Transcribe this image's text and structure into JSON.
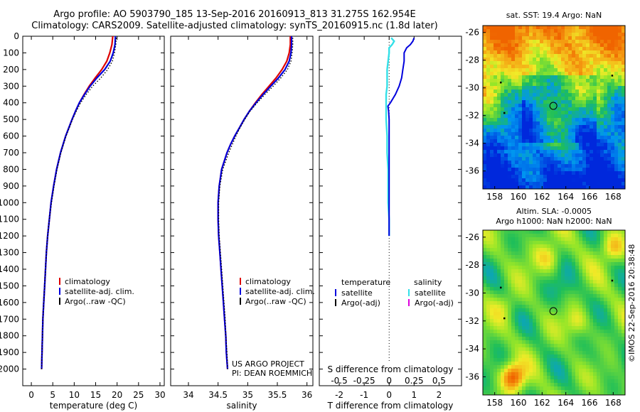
{
  "header": {
    "line1": "Argo profile: AO 5903790_185 13-Sep-2016 20160913_813 31.275S 162.954E",
    "line2": "Climatology: CARS2009. Satellite-adjusted climatology: synTS_20160915.nc (1.8d later)"
  },
  "credit": {
    "project": "US ARGO PROJECT",
    "pi": "PI: DEAN ROEMMICH",
    "imos": "©IMOS 22-Sep-2016 20:38:48"
  },
  "colors": {
    "climatology": "#dd0000",
    "satellite": "#0000dd",
    "argo": "#000000",
    "salinity_satellite": "#33e0e8",
    "salinity_argo": "#dd00dd"
  },
  "chart_data": [
    {
      "type": "line",
      "xlabel": "temperature (deg C)",
      "ylabel": "",
      "xlim": [
        -2,
        31
      ],
      "ylim": [
        2100,
        0
      ],
      "xticks": [
        "0",
        "5",
        "10",
        "15",
        "20",
        "25",
        "30"
      ],
      "yticks": [
        "0",
        "100",
        "200",
        "300",
        "400",
        "500",
        "600",
        "700",
        "800",
        "900",
        "1000",
        "1100",
        "1200",
        "1300",
        "1400",
        "1500",
        "1600",
        "1700",
        "1800",
        "1900",
        "2000"
      ],
      "legend": {
        "position": "lower-middle",
        "entries": [
          "climatology",
          "satellite-adj. clim.",
          "Argo(..raw -QC)"
        ]
      },
      "series": [
        {
          "name": "climatology",
          "depth": [
            0,
            50,
            100,
            150,
            200,
            250,
            300,
            350,
            400,
            450,
            500,
            600,
            700,
            800,
            900,
            1000,
            1100,
            1200,
            1300,
            1400,
            1500,
            1600,
            1700,
            1800,
            1900,
            2000
          ],
          "values": [
            19.0,
            18.8,
            18.3,
            17.6,
            16.4,
            14.9,
            13.5,
            12.3,
            11.2,
            10.3,
            9.5,
            8.0,
            6.8,
            5.9,
            5.2,
            4.6,
            4.2,
            3.8,
            3.5,
            3.3,
            3.1,
            2.9,
            2.7,
            2.6,
            2.5,
            2.4
          ]
        },
        {
          "name": "satellite-adj. clim.",
          "depth": [
            0,
            50,
            100,
            150,
            200,
            250,
            300,
            350,
            400,
            450,
            500,
            600,
            700,
            800,
            900,
            1000,
            1100,
            1200,
            1300,
            1400,
            1500,
            1600,
            1700,
            1800,
            1900,
            2000
          ],
          "values": [
            19.6,
            19.5,
            19.1,
            18.4,
            17.1,
            15.3,
            13.7,
            12.4,
            11.2,
            10.3,
            9.5,
            8.0,
            6.8,
            5.9,
            5.2,
            4.6,
            4.2,
            3.8,
            3.5,
            3.3,
            3.1,
            2.9,
            2.7,
            2.6,
            2.5,
            2.4
          ]
        },
        {
          "name": "Argo(..raw -QC)",
          "depth": [
            10,
            50,
            100,
            150,
            200,
            250,
            300,
            350,
            400,
            450,
            500,
            600,
            700,
            800,
            900,
            1000,
            1100,
            1200,
            1300,
            1400,
            1500,
            1600,
            1700,
            1800,
            1900,
            2000
          ],
          "values": [
            19.8,
            19.7,
            19.4,
            18.9,
            17.8,
            16.2,
            14.3,
            12.8,
            11.5,
            10.5,
            9.6,
            8.1,
            6.9,
            6.0,
            5.3,
            4.7,
            4.2,
            3.8,
            3.5,
            3.3,
            3.1,
            2.9,
            2.7,
            2.6,
            2.5,
            2.4
          ]
        }
      ]
    },
    {
      "type": "line",
      "xlabel": "salinity",
      "ylabel": "",
      "xlim": [
        33.7,
        36.1
      ],
      "ylim": [
        2100,
        0
      ],
      "xticks": [
        "34",
        "34.5",
        "35",
        "35.5",
        "36"
      ],
      "legend": {
        "position": "lower-right",
        "entries": [
          "climatology",
          "satellite-adj. clim.",
          "Argo(..raw -QC)"
        ]
      },
      "series": [
        {
          "name": "climatology",
          "depth": [
            0,
            50,
            100,
            150,
            200,
            250,
            300,
            350,
            400,
            450,
            500,
            550,
            600,
            650,
            700,
            800,
            900,
            1000,
            1100,
            1200,
            1300,
            1400,
            1500,
            1600,
            1700,
            1800,
            1900,
            2000
          ],
          "values": [
            35.72,
            35.72,
            35.7,
            35.66,
            35.58,
            35.48,
            35.36,
            35.24,
            35.13,
            35.03,
            34.94,
            34.86,
            34.78,
            34.71,
            34.65,
            34.56,
            34.52,
            34.5,
            34.5,
            34.51,
            34.53,
            34.55,
            34.57,
            34.59,
            34.61,
            34.63,
            34.64,
            34.66
          ]
        },
        {
          "name": "satellite-adj. clim.",
          "depth": [
            0,
            50,
            100,
            150,
            200,
            250,
            300,
            350,
            400,
            450,
            500,
            550,
            600,
            650,
            700,
            800,
            900,
            1000,
            1100,
            1200,
            1300,
            1400,
            1500,
            1600,
            1700,
            1800,
            1900,
            2000
          ],
          "values": [
            35.74,
            35.74,
            35.73,
            35.7,
            35.63,
            35.52,
            35.39,
            35.26,
            35.14,
            35.03,
            34.94,
            34.86,
            34.78,
            34.71,
            34.65,
            34.56,
            34.52,
            34.5,
            34.5,
            34.51,
            34.53,
            34.55,
            34.57,
            34.59,
            34.61,
            34.63,
            34.64,
            34.66
          ]
        },
        {
          "name": "Argo(..raw -QC)",
          "depth": [
            10,
            50,
            100,
            150,
            200,
            250,
            300,
            350,
            400,
            450,
            500,
            550,
            600,
            650,
            700,
            800,
            900,
            1000,
            1100,
            1200,
            1300,
            1400,
            1500,
            1600,
            1700,
            1800,
            1900,
            2000
          ],
          "values": [
            35.76,
            35.76,
            35.75,
            35.73,
            35.67,
            35.56,
            35.43,
            35.29,
            35.16,
            35.04,
            34.95,
            34.87,
            34.8,
            34.74,
            34.68,
            34.58,
            34.53,
            34.51,
            34.51,
            34.52,
            34.54,
            34.56,
            34.58,
            34.6,
            34.62,
            34.63,
            34.65,
            34.66
          ]
        }
      ]
    },
    {
      "type": "line",
      "xlabel": "T difference from climatology",
      "xlabel_top": "S difference from climatology",
      "xlim": [
        -2.8,
        2.9
      ],
      "ylim": [
        2100,
        0
      ],
      "xticks_T": [
        "-2",
        "-1",
        "0",
        "1",
        "2"
      ],
      "xticks_S": [
        "-0.5",
        "-0.25",
        "0",
        "0.25",
        "0.5"
      ],
      "legend": {
        "position": "lower",
        "headers": [
          "temperature",
          "salinity"
        ],
        "entries": [
          "satellite",
          "Argo(-adj)",
          "satellite",
          "Argo(-adj)"
        ]
      },
      "series": [
        {
          "name": "satellite (temperature)",
          "depth": [
            10,
            30,
            50,
            70,
            100,
            150,
            200,
            250,
            300,
            350,
            400,
            420,
            450,
            500,
            600,
            700,
            800,
            900,
            1000,
            1100,
            1200
          ],
          "values": [
            1.0,
            0.95,
            0.85,
            0.7,
            0.6,
            0.6,
            0.55,
            0.5,
            0.4,
            0.25,
            0.05,
            -0.05,
            -0.02,
            0,
            0,
            0,
            0,
            0,
            0,
            0,
            0
          ]
        },
        {
          "name": "satellite (salinity)",
          "depth": [
            10,
            30,
            50,
            70,
            100,
            150,
            200,
            250,
            300,
            350,
            400,
            450,
            500,
            600,
            700,
            800,
            900,
            1000,
            1100,
            1200
          ],
          "values": [
            0.02,
            0.05,
            0.03,
            0.0,
            0.0,
            -0.01,
            -0.02,
            -0.02,
            -0.02,
            -0.03,
            -0.03,
            -0.03,
            -0.03,
            -0.02,
            -0.02,
            -0.01,
            -0.01,
            -0.01,
            0.0,
            0.0
          ]
        }
      ]
    },
    {
      "type": "heatmap",
      "title": "sat. SST: 19.4  Argo: NaN",
      "xlim": [
        157,
        169
      ],
      "ylim": [
        -37.3,
        -25.5
      ],
      "xticks": [
        "158",
        "160",
        "162",
        "164",
        "166",
        "168"
      ],
      "yticks": [
        "-26",
        "-28",
        "-30",
        "-32",
        "-34",
        "-36"
      ],
      "argo_position": {
        "lon": 162.95,
        "lat": -31.3
      }
    },
    {
      "type": "heatmap",
      "title": "Altim. SLA: -0.0005",
      "subtitle": "Argo h1000: NaN h2000: NaN",
      "xlim": [
        157,
        169
      ],
      "ylim": [
        -37.3,
        -25.5
      ],
      "xticks": [
        "158",
        "160",
        "162",
        "164",
        "166",
        "168"
      ],
      "yticks": [
        "-26",
        "-28",
        "-30",
        "-32",
        "-34",
        "-36"
      ],
      "argo_position": {
        "lon": 162.95,
        "lat": -31.3
      }
    }
  ]
}
